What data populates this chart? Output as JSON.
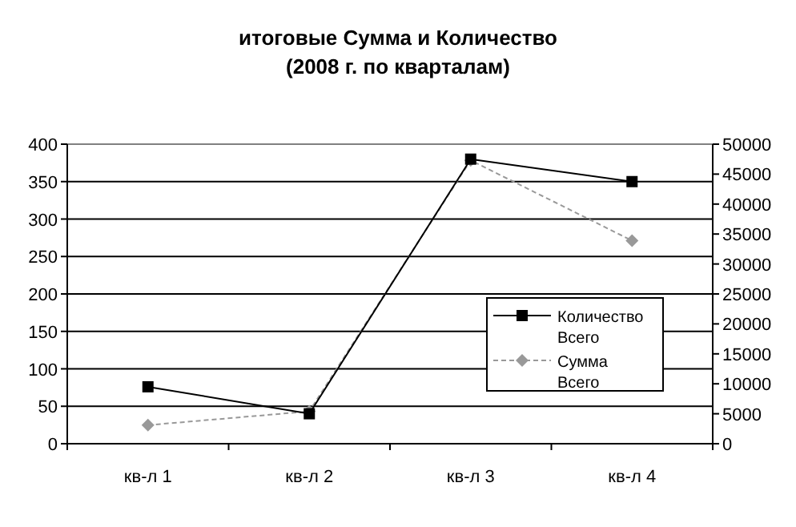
{
  "chart_data": {
    "type": "line",
    "title": "итоговые Сумма и Количество",
    "subtitle": "(2008 г. по кварталам)",
    "categories": [
      "кв-л 1",
      "кв-л 2",
      "кв-л 3",
      "кв-л 4"
    ],
    "series": [
      {
        "name": "Количество Всего",
        "color": "#000000",
        "values": [
          76,
          40,
          380,
          350
        ],
        "marker": "square",
        "line_style": "solid"
      },
      {
        "name": "Сумма Всего",
        "color": "#999999",
        "values": [
          3100,
          5400,
          47300,
          33900
        ],
        "axis": "y2",
        "marker": "diamond",
        "line_style": "dashed"
      }
    ],
    "ylim": [
      0,
      400
    ],
    "yticks": [
      0,
      50,
      100,
      150,
      200,
      250,
      300,
      350,
      400
    ],
    "y2lim": [
      0,
      50000
    ],
    "y2ticks": [
      0,
      5000,
      10000,
      15000,
      20000,
      25000,
      30000,
      35000,
      40000,
      45000,
      50000
    ],
    "grid": "y",
    "legend": "right"
  }
}
